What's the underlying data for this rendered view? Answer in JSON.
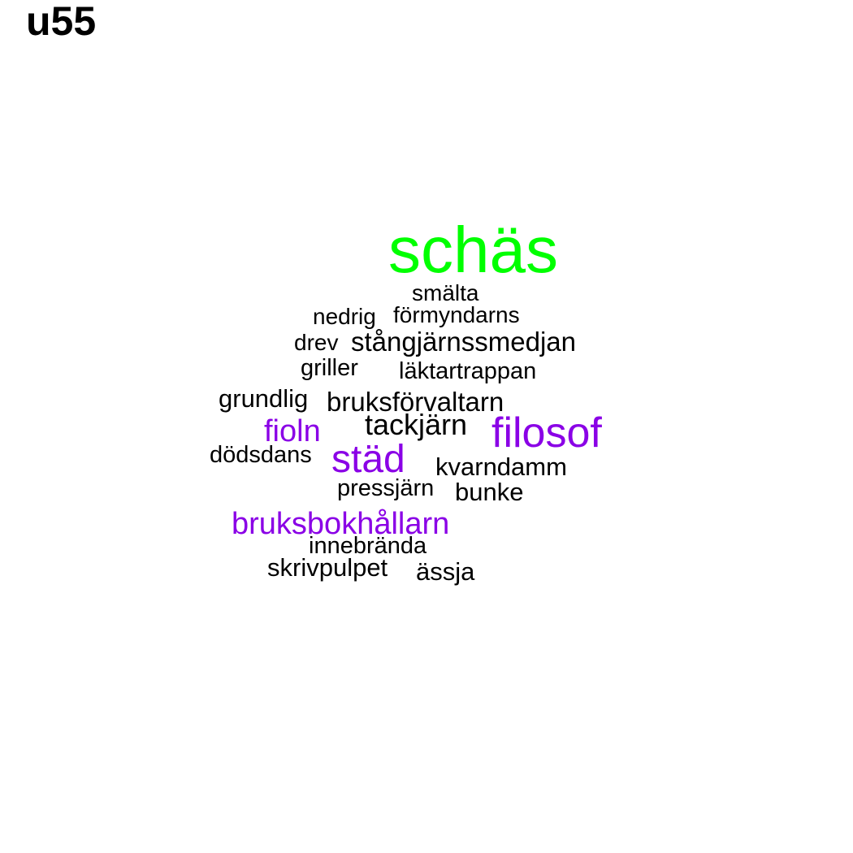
{
  "title": "u55",
  "colors": {
    "primary": "#00ff00",
    "accent": "#8a00e6",
    "default": "#000000"
  },
  "words": [
    {
      "text": "schäs",
      "color": "primary"
    },
    {
      "text": "smälta",
      "color": "default"
    },
    {
      "text": "nedrig",
      "color": "default"
    },
    {
      "text": "förmyndarns",
      "color": "default"
    },
    {
      "text": "drev",
      "color": "default"
    },
    {
      "text": "stångjärnssmedjan",
      "color": "default"
    },
    {
      "text": "griller",
      "color": "default"
    },
    {
      "text": "läktartrappan",
      "color": "default"
    },
    {
      "text": "grundlig",
      "color": "default"
    },
    {
      "text": "bruksförvaltarn",
      "color": "default"
    },
    {
      "text": "tackjärn",
      "color": "default"
    },
    {
      "text": "fioln",
      "color": "accent"
    },
    {
      "text": "filosof",
      "color": "accent"
    },
    {
      "text": "dödsdans",
      "color": "default"
    },
    {
      "text": "städ",
      "color": "accent"
    },
    {
      "text": "kvarndamm",
      "color": "default"
    },
    {
      "text": "pressjärn",
      "color": "default"
    },
    {
      "text": "bunke",
      "color": "default"
    },
    {
      "text": "bruksbokhållarn",
      "color": "accent"
    },
    {
      "text": "innebrända",
      "color": "default"
    },
    {
      "text": "skrivpulpet",
      "color": "default"
    },
    {
      "text": "ässja",
      "color": "default"
    }
  ]
}
